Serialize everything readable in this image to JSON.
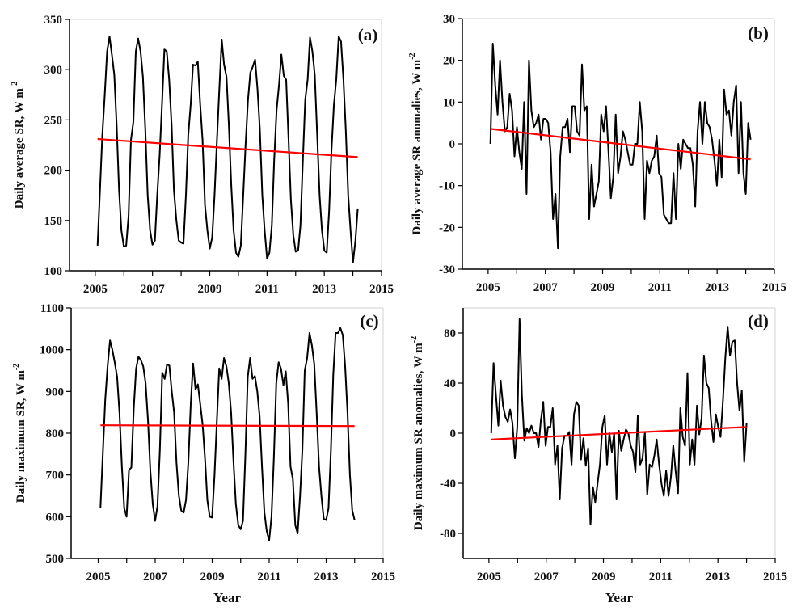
{
  "chart_data": [
    {
      "type": "line",
      "panel_label": "(a)",
      "ylabel": "Daily average SR,  W m",
      "ylabel_sup": "-2",
      "xlabel": "",
      "xlim": [
        2004.1,
        2015
      ],
      "ylim": [
        100,
        350
      ],
      "xticks": [
        "2005",
        "2007",
        "2009",
        "2011",
        "2013",
        "2015"
      ],
      "yticks": [
        "100",
        "150",
        "200",
        "250",
        "300",
        "350"
      ],
      "series": [
        {
          "name": "Daily average SR",
          "color": "#000000",
          "x_start": 2005.08,
          "x_end": 2014.17,
          "values": [
            125,
            180,
            235,
            275,
            318,
            333,
            315,
            295,
            245,
            180,
            140,
            124,
            125,
            155,
            230,
            248,
            318,
            331,
            318,
            293,
            240,
            175,
            140,
            126,
            130,
            175,
            215,
            265,
            320,
            318,
            290,
            245,
            180,
            150,
            130,
            128,
            127,
            175,
            235,
            265,
            305,
            304,
            308,
            265,
            230,
            165,
            140,
            122,
            133,
            175,
            230,
            280,
            330,
            305,
            293,
            245,
            185,
            140,
            118,
            114,
            125,
            175,
            225,
            270,
            297,
            303,
            310,
            280,
            240,
            175,
            140,
            112,
            118,
            145,
            210,
            260,
            285,
            315,
            294,
            290,
            230,
            170,
            135,
            119,
            120,
            145,
            210,
            270,
            290,
            332,
            318,
            295,
            235,
            175,
            140,
            120,
            118,
            160,
            220,
            265,
            290,
            333,
            328,
            290,
            240,
            175,
            140,
            108,
            130,
            162
          ]
        },
        {
          "name": "Linear trend",
          "color": "#ff0000",
          "x_start": 2005.08,
          "x_end": 2014.17,
          "values": [
            231,
            213
          ]
        }
      ]
    },
    {
      "type": "line",
      "panel_label": "(b)",
      "ylabel": "Daily average SR anomalies,  W m",
      "ylabel_sup": "-2",
      "xlabel": "",
      "xlim": [
        2004.1,
        2015
      ],
      "ylim": [
        -30,
        30
      ],
      "xticks": [
        "2005",
        "2007",
        "2009",
        "2011",
        "2013",
        "2015"
      ],
      "yticks": [
        "-30",
        "-20",
        "-10",
        "0",
        "10",
        "20",
        "30"
      ],
      "series": [
        {
          "name": "Daily average SR anomalies",
          "color": "#000000",
          "x_start": 2005.08,
          "x_end": 2014.17,
          "values": [
            0,
            24,
            14,
            7,
            20,
            10,
            3,
            4,
            12,
            8,
            -3,
            4,
            -2,
            -6,
            10,
            -12,
            20,
            8,
            4,
            5,
            7,
            1,
            6,
            6,
            5,
            -2,
            -18,
            -12,
            -25,
            -3,
            4,
            4,
            6,
            -2,
            9,
            9,
            3,
            2,
            19,
            8,
            9,
            -18,
            -5,
            -15,
            -12,
            -9,
            7,
            3,
            9,
            -2,
            -13,
            -8,
            7,
            -7,
            -3,
            3,
            1,
            -2,
            -5,
            -5,
            0,
            0,
            10,
            3,
            -18,
            -4,
            -7,
            -4,
            -3,
            2,
            -7,
            -8,
            -17,
            -18,
            -19,
            -19,
            -7,
            -18,
            0,
            -6,
            1,
            0,
            -1,
            -1,
            -5,
            -15,
            3,
            10,
            0,
            10,
            5,
            4,
            1,
            -4,
            -10,
            1,
            -8,
            13,
            7,
            8,
            2,
            10,
            14,
            -7,
            10,
            -7,
            -12,
            5,
            1
          ]
        },
        {
          "name": "Linear trend",
          "color": "#ff0000",
          "x_start": 2005.08,
          "x_end": 2014.17,
          "values": [
            3.6,
            -3.7
          ]
        }
      ]
    },
    {
      "type": "line",
      "panel_label": "(c)",
      "ylabel": "Daily maximum SR,  W m",
      "ylabel_sup": "-2",
      "xlabel": "Year",
      "xlim": [
        2004.05,
        2015
      ],
      "ylim": [
        500,
        1100
      ],
      "xticks": [
        "2005",
        "2007",
        "2009",
        "2011",
        "2013",
        "2015"
      ],
      "yticks": [
        "500",
        "600",
        "700",
        "800",
        "900",
        "1000",
        "1100"
      ],
      "series": [
        {
          "name": "Daily maximum SR",
          "color": "#000000",
          "x_start": 2005.08,
          "x_end": 2014.0,
          "values": [
            622,
            750,
            880,
            960,
            1022,
            1000,
            970,
            935,
            850,
            720,
            620,
            600,
            712,
            718,
            860,
            955,
            983,
            975,
            960,
            920,
            830,
            710,
            630,
            590,
            625,
            760,
            945,
            930,
            965,
            962,
            900,
            850,
            730,
            650,
            615,
            610,
            640,
            730,
            870,
            967,
            905,
            917,
            870,
            820,
            740,
            640,
            600,
            598,
            700,
            830,
            955,
            930,
            980,
            960,
            920,
            850,
            730,
            630,
            580,
            570,
            590,
            750,
            935,
            980,
            930,
            937,
            900,
            840,
            720,
            610,
            565,
            543,
            600,
            740,
            920,
            970,
            955,
            915,
            948,
            870,
            720,
            690,
            580,
            560,
            650,
            760,
            950,
            980,
            1040,
            1010,
            965,
            850,
            720,
            650,
            595,
            592,
            620,
            760,
            940,
            1040,
            1040,
            1052,
            1035,
            960,
            850,
            700,
            615,
            592
          ]
        },
        {
          "name": "Linear trend",
          "color": "#ff0000",
          "x_start": 2005.08,
          "x_end": 2014.0,
          "values": [
            819,
            817
          ]
        }
      ]
    },
    {
      "type": "line",
      "panel_label": "(d)",
      "ylabel": "Daily maximum SR anomalies,  W m",
      "ylabel_sup": "-2",
      "xlabel": "Year",
      "xlim": [
        2004.1,
        2015
      ],
      "ylim": [
        -100,
        100
      ],
      "xticks": [
        "2005",
        "2007",
        "2009",
        "2011",
        "2013",
        "2015"
      ],
      "yticks": [
        "-80",
        "-40",
        "0",
        "40",
        "80"
      ],
      "series": [
        {
          "name": "Daily maximum SR anomalies",
          "color": "#000000",
          "x_start": 2005.08,
          "x_end": 2014.0,
          "values": [
            0,
            56,
            30,
            6,
            42,
            22,
            13,
            9,
            19,
            8,
            -20,
            5,
            91,
            30,
            -6,
            4,
            0,
            6,
            0,
            0,
            -11,
            10,
            25,
            -10,
            5,
            5,
            20,
            -25,
            -10,
            -53,
            -12,
            -2,
            -2,
            1,
            -25,
            15,
            25,
            22,
            -21,
            -4,
            -26,
            -12,
            -73,
            -43,
            -55,
            -40,
            -25,
            5,
            14,
            -25,
            0,
            -15,
            0,
            -53,
            2,
            -14,
            -5,
            3,
            0,
            -10,
            -15,
            -31,
            14,
            -25,
            -20,
            1,
            -49,
            -25,
            -27,
            -18,
            -5,
            -25,
            -40,
            -50,
            -30,
            -50,
            -35,
            -10,
            -30,
            -48,
            20,
            -3,
            -10,
            48,
            -25,
            -5,
            -25,
            22,
            -1,
            12,
            62,
            40,
            36,
            10,
            -7,
            15,
            5,
            -3,
            25,
            60,
            85,
            62,
            73,
            74,
            40,
            18,
            34,
            -23,
            8
          ]
        },
        {
          "name": "Linear trend",
          "color": "#ff0000",
          "x_start": 2005.08,
          "x_end": 2014.0,
          "values": [
            -5,
            5
          ]
        }
      ]
    }
  ]
}
